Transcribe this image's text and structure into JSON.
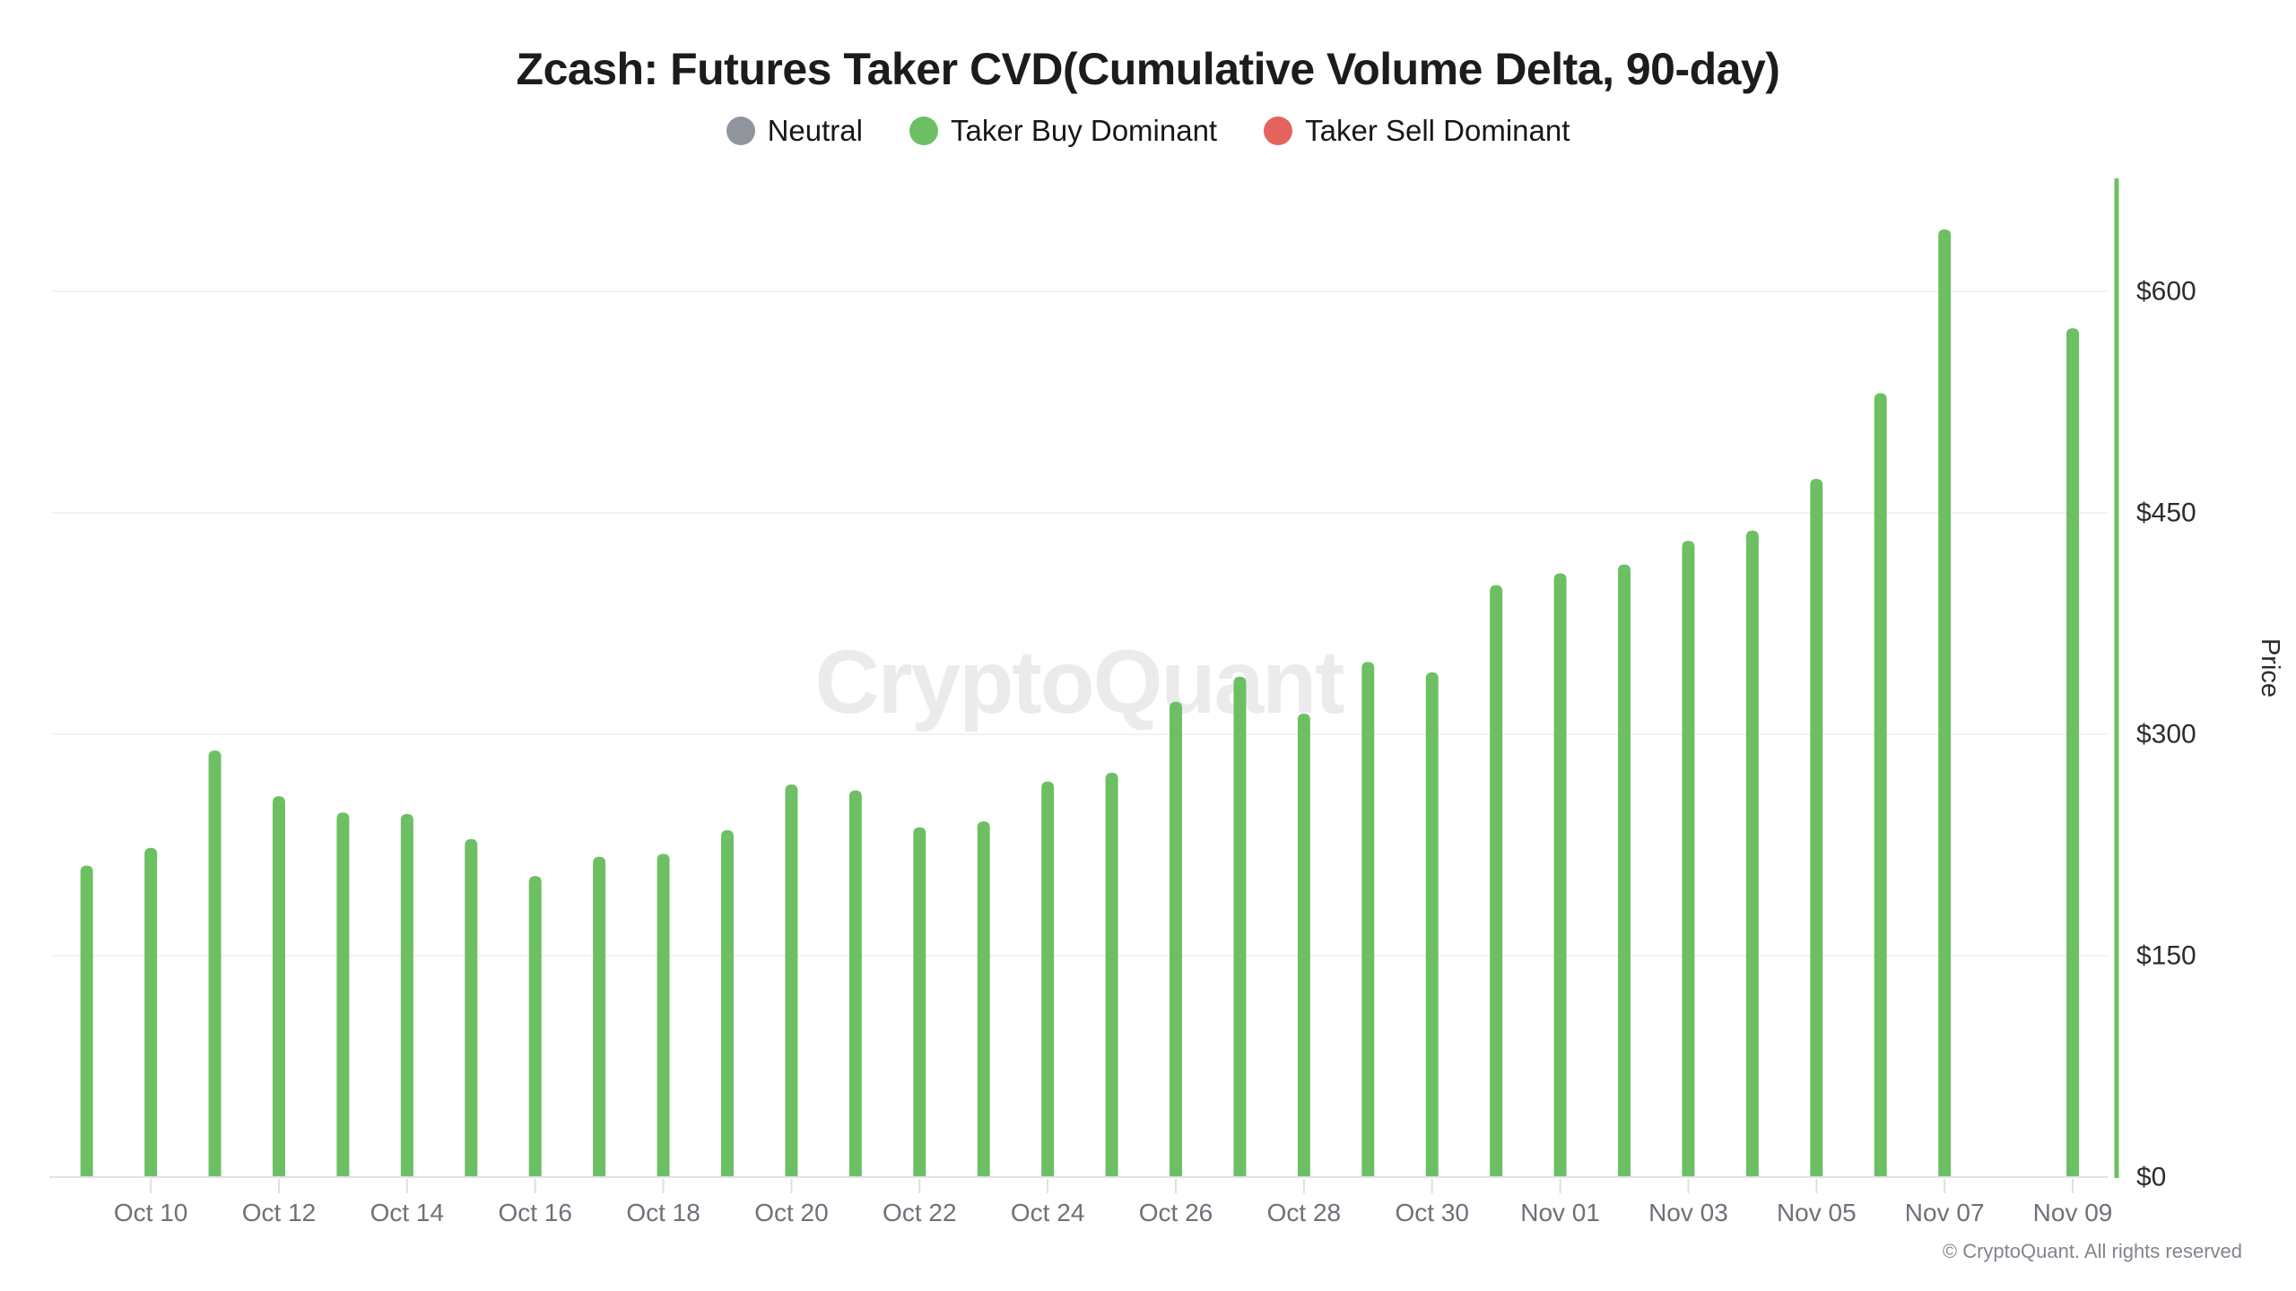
{
  "title": "Zcash: Futures Taker CVD(Cumulative Volume Delta, 90-day)",
  "legend": {
    "items": [
      {
        "label": "Neutral",
        "color": "#8f949d"
      },
      {
        "label": "Taker Buy Dominant",
        "color": "#6cc063"
      },
      {
        "label": "Taker Sell Dominant",
        "color": "#e5635d"
      }
    ]
  },
  "watermark": "CryptoQuant",
  "copyright": "© CryptoQuant. All rights reserved",
  "chart_data": {
    "type": "bar",
    "title": "Zcash: Futures Taker CVD(Cumulative Volume Delta, 90-day)",
    "ylabel": "Price",
    "xlabel": "",
    "grid": "horizontal",
    "legend_position": "top",
    "ylim": [
      0,
      677
    ],
    "y_ticks": [
      {
        "value": 0,
        "label": "$0"
      },
      {
        "value": 150,
        "label": "$150"
      },
      {
        "value": 300,
        "label": "$300"
      },
      {
        "value": 450,
        "label": "$450"
      },
      {
        "value": 600,
        "label": "$600"
      }
    ],
    "x_tick_every": 2,
    "x_tick_start_index": 1,
    "categories": [
      "Oct 09",
      "Oct 10",
      "Oct 11",
      "Oct 12",
      "Oct 13",
      "Oct 14",
      "Oct 15",
      "Oct 16",
      "Oct 17",
      "Oct 18",
      "Oct 19",
      "Oct 20",
      "Oct 21",
      "Oct 22",
      "Oct 23",
      "Oct 24",
      "Oct 25",
      "Oct 26",
      "Oct 27",
      "Oct 28",
      "Oct 29",
      "Oct 30",
      "Oct 31",
      "Nov 01",
      "Nov 02",
      "Nov 03",
      "Nov 04",
      "Nov 05",
      "Nov 06",
      "Nov 07",
      "Nov 08",
      "Nov 09"
    ],
    "series": [
      {
        "name": "Taker Buy Dominant",
        "color": "#6cc063",
        "values": [
          211,
          223,
          289,
          258,
          247,
          246,
          229,
          204,
          217,
          219,
          235,
          266,
          262,
          237,
          241,
          268,
          274,
          322,
          339,
          314,
          349,
          342,
          401,
          409,
          415,
          431,
          438,
          473,
          531,
          642,
          null,
          575
        ]
      }
    ],
    "note_colors": {
      "neutral": "#8f949d",
      "taker_buy_dominant": "#6cc063",
      "taker_sell_dominant": "#e5635d"
    }
  }
}
